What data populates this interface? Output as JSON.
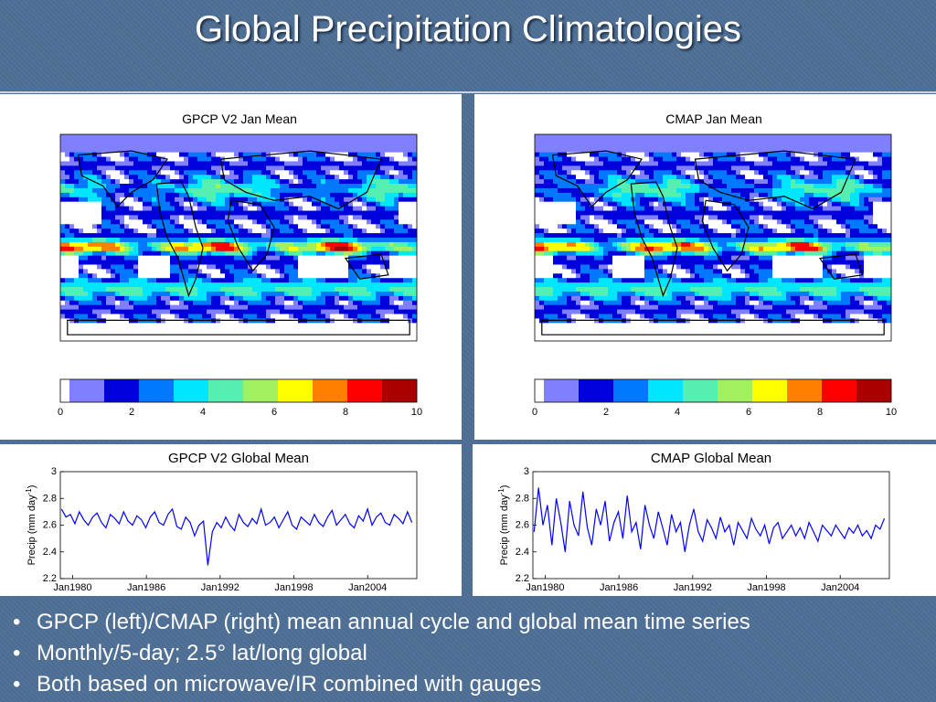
{
  "slide": {
    "title": "Global Precipitation Climatologies",
    "bullets": [
      "GPCP (left)/CMAP (right) mean annual cycle and global mean time series",
      "Monthly/5-day; 2.5° lat/long global",
      "Both based on microwave/IR combined with gauges"
    ]
  },
  "colors": {
    "background": "#4e6f96",
    "series_line": "#0000ff",
    "colorbar": [
      "#ffffff",
      "#8080ff",
      "#0000dd",
      "#0078ff",
      "#00e6ff",
      "#55f0b0",
      "#a0f060",
      "#ffff00",
      "#ff8000",
      "#ff0000",
      "#aa0000"
    ]
  },
  "chart_data": [
    {
      "type": "heatmap",
      "title": "GPCP V2 Jan Mean",
      "colorbar": {
        "min": 0,
        "max": 10,
        "ticks": [
          "0",
          "2",
          "4",
          "6",
          "8",
          "10"
        ]
      },
      "description_values": "global Jan mean precipitation map (mm/day)"
    },
    {
      "type": "heatmap",
      "title": "CMAP Jan Mean",
      "colorbar": {
        "min": 0,
        "max": 10,
        "ticks": [
          "0",
          "2",
          "4",
          "6",
          "8",
          "10"
        ]
      },
      "description_values": "global Jan mean precipitation map (mm/day)"
    },
    {
      "type": "line",
      "title": "GPCP V2 Global Mean",
      "ylabel": "Precip (mm day",
      "ylabel_sup": "-1",
      "ylim": [
        2.2,
        3
      ],
      "yticks": [
        "2.2",
        "2.4",
        "2.6",
        "2.8",
        "3"
      ],
      "xlim": [
        1979,
        2008
      ],
      "xticks": [
        {
          "label": "Jan1980",
          "x": 1980
        },
        {
          "label": "Jan1986",
          "x": 1986
        },
        {
          "label": "Jan1992",
          "x": 1992
        },
        {
          "label": "Jan1998",
          "x": 1998
        },
        {
          "label": "Jan2004",
          "x": 2004
        }
      ],
      "series": [
        {
          "values": [
            2.72,
            2.66,
            2.68,
            2.61,
            2.7,
            2.64,
            2.6,
            2.66,
            2.69,
            2.62,
            2.58,
            2.68,
            2.65,
            2.61,
            2.7,
            2.63,
            2.6,
            2.67,
            2.64,
            2.58,
            2.66,
            2.7,
            2.62,
            2.6,
            2.68,
            2.72,
            2.59,
            2.57,
            2.66,
            2.62,
            2.52,
            2.6,
            2.63,
            2.3,
            2.55,
            2.62,
            2.58,
            2.66,
            2.6,
            2.56,
            2.68,
            2.62,
            2.59,
            2.65,
            2.61,
            2.72,
            2.6,
            2.62,
            2.66,
            2.58,
            2.64,
            2.7,
            2.6,
            2.57,
            2.66,
            2.63,
            2.6,
            2.68,
            2.62,
            2.59,
            2.66,
            2.71,
            2.6,
            2.64,
            2.68,
            2.61,
            2.58,
            2.67,
            2.63,
            2.72,
            2.6,
            2.66,
            2.69,
            2.62,
            2.6,
            2.68,
            2.65,
            2.61,
            2.7,
            2.62
          ]
        }
      ]
    },
    {
      "type": "line",
      "title": "CMAP Global Mean",
      "ylabel": "Precip (mm day",
      "ylabel_sup": "-1",
      "ylim": [
        2.2,
        3
      ],
      "yticks": [
        "2.2",
        "2.4",
        "2.6",
        "2.8",
        "3"
      ],
      "xlim": [
        1979,
        2008
      ],
      "xticks": [
        {
          "label": "Jan1980",
          "x": 1980
        },
        {
          "label": "Jan1986",
          "x": 1986
        },
        {
          "label": "Jan1992",
          "x": 1992
        },
        {
          "label": "Jan1998",
          "x": 1998
        },
        {
          "label": "Jan2004",
          "x": 2004
        }
      ],
      "series": [
        {
          "values": [
            2.55,
            2.88,
            2.6,
            2.75,
            2.45,
            2.8,
            2.62,
            2.4,
            2.78,
            2.6,
            2.52,
            2.85,
            2.58,
            2.45,
            2.72,
            2.6,
            2.78,
            2.48,
            2.62,
            2.7,
            2.5,
            2.82,
            2.55,
            2.62,
            2.42,
            2.75,
            2.6,
            2.5,
            2.7,
            2.58,
            2.45,
            2.68,
            2.55,
            2.62,
            2.4,
            2.6,
            2.72,
            2.55,
            2.48,
            2.64,
            2.58,
            2.5,
            2.66,
            2.55,
            2.6,
            2.45,
            2.62,
            2.56,
            2.5,
            2.65,
            2.57,
            2.52,
            2.6,
            2.46,
            2.58,
            2.62,
            2.5,
            2.55,
            2.6,
            2.52,
            2.58,
            2.5,
            2.62,
            2.55,
            2.48,
            2.6,
            2.56,
            2.52,
            2.6,
            2.55,
            2.5,
            2.58,
            2.54,
            2.6,
            2.52,
            2.56,
            2.5,
            2.6,
            2.57,
            2.65
          ]
        }
      ]
    }
  ]
}
